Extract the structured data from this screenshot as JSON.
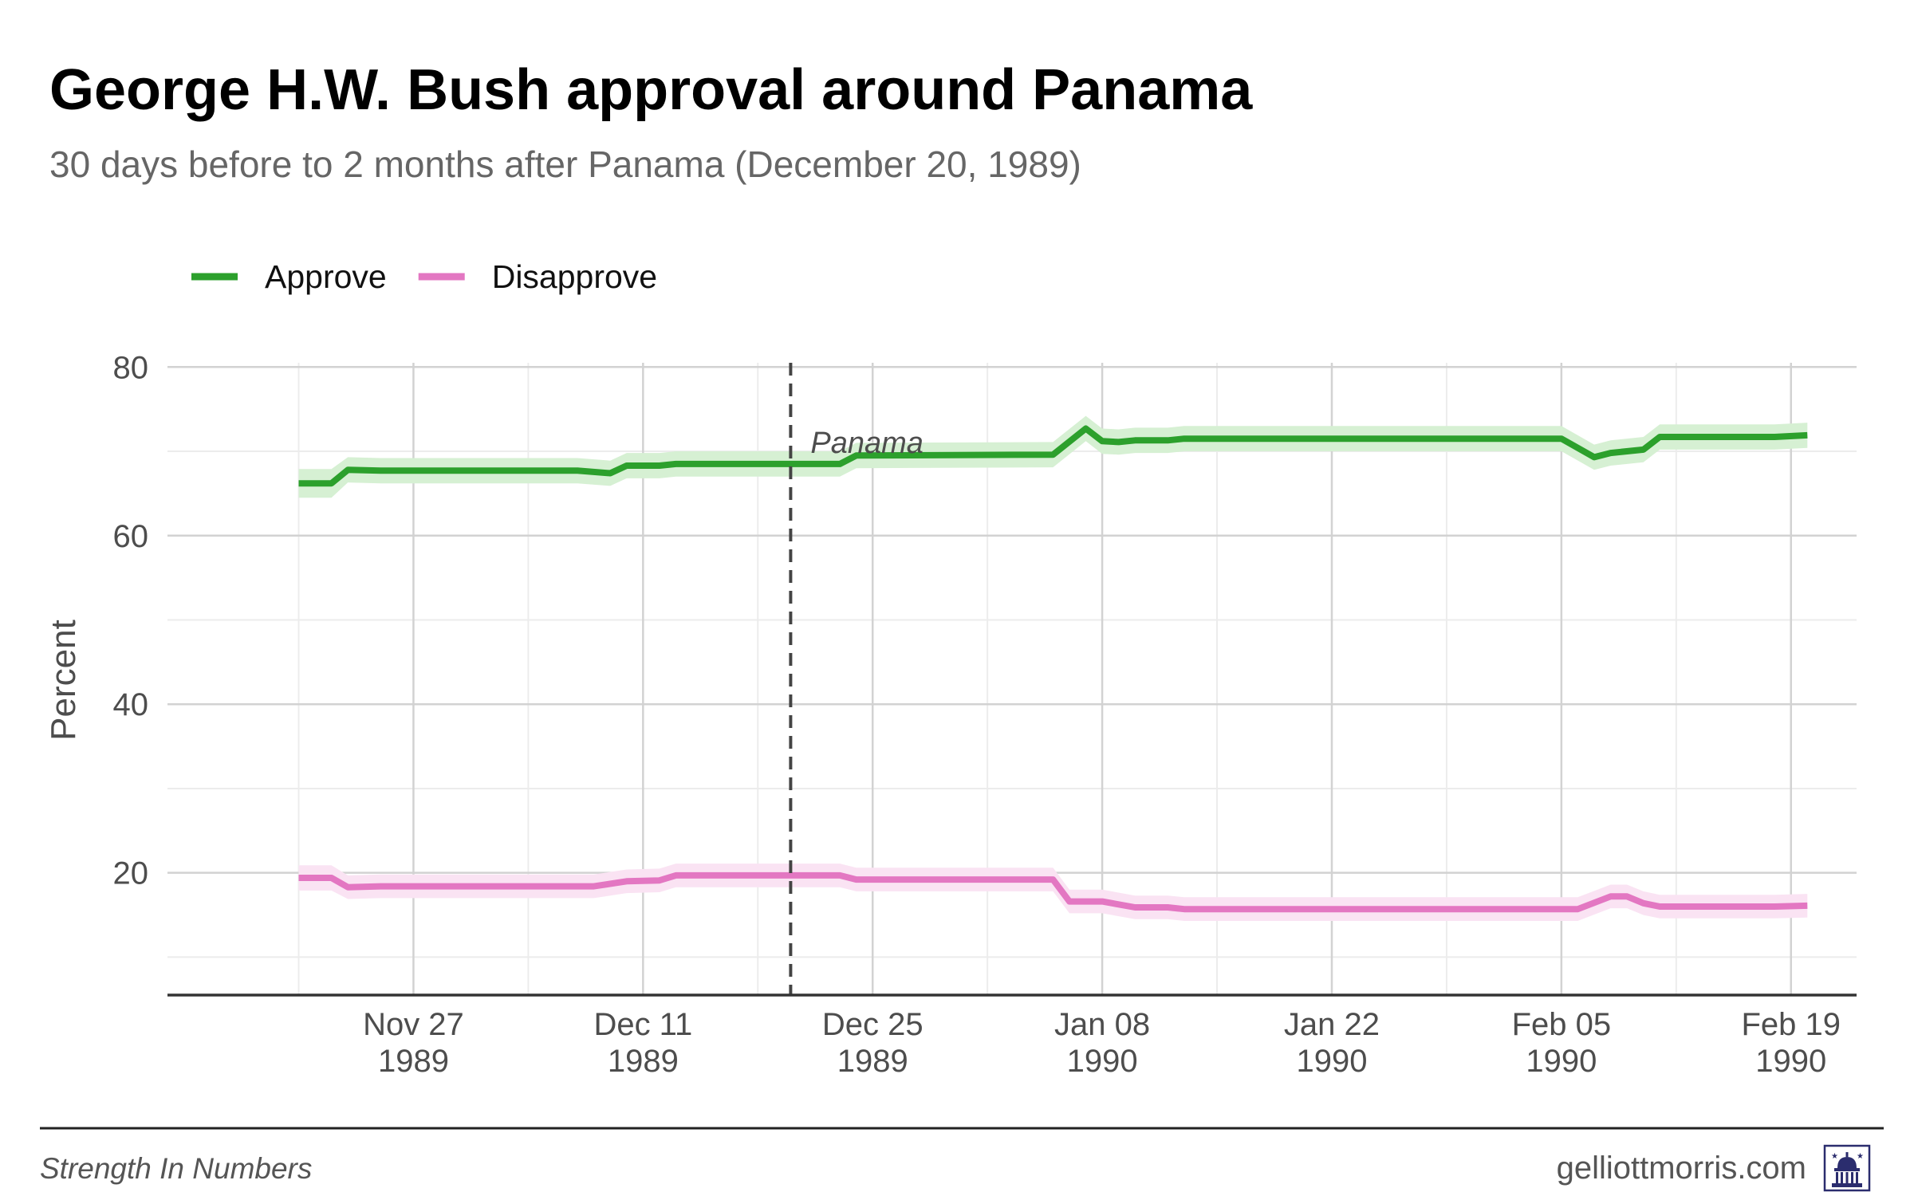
{
  "title": "George H.W. Bush approval around Panama",
  "subtitle": "30 days before to 2 months after Panama (December 20, 1989)",
  "footer": {
    "left": "Strength In Numbers",
    "right": "gelliottmorris.com",
    "logo_icon": "capitol-building-icon"
  },
  "colors": {
    "approve": "#2ca02c",
    "approve_band": "#d6f0d3",
    "disapprove": "#e377c2",
    "disapprove_band": "#fae3f3",
    "event_line": "#444444",
    "grid_major": "#d2d2d2",
    "grid_minor": "#ececec",
    "axis": "#333333"
  },
  "chart_data": {
    "type": "line",
    "title": "George H.W. Bush approval around Panama",
    "subtitle": "30 days before to 2 months after Panama (December 20, 1989)",
    "xlabel": "",
    "ylabel": "Percent",
    "x_type": "date",
    "xlim": [
      "1989-11-12",
      "1990-02-23"
    ],
    "ylim": [
      5.5,
      80.5
    ],
    "y_ticks": [
      20,
      40,
      60,
      80
    ],
    "x_ticks": [
      {
        "date": "1989-11-27",
        "line1": "Nov 27",
        "line2": "1989"
      },
      {
        "date": "1989-12-11",
        "line1": "Dec 11",
        "line2": "1989"
      },
      {
        "date": "1989-12-25",
        "line1": "Dec 25",
        "line2": "1989"
      },
      {
        "date": "1990-01-08",
        "line1": "Jan 08",
        "line2": "1990"
      },
      {
        "date": "1990-01-22",
        "line1": "Jan 22",
        "line2": "1990"
      },
      {
        "date": "1990-02-05",
        "line1": "Feb 05",
        "line2": "1990"
      },
      {
        "date": "1990-02-19",
        "line1": "Feb 19",
        "line2": "1990"
      }
    ],
    "grid": true,
    "legend_position": "top-left",
    "event": {
      "date": "1989-12-20",
      "label": "Panama"
    },
    "series": [
      {
        "name": "Approve",
        "color": "#2ca02c",
        "band_color": "#d6f0d3",
        "points": [
          {
            "x": "1989-11-20",
            "y": 66.2,
            "lo": 64.5,
            "hi": 67.9
          },
          {
            "x": "1989-11-22",
            "y": 66.2,
            "lo": 64.5,
            "hi": 67.9
          },
          {
            "x": "1989-11-23",
            "y": 67.8,
            "lo": 66.3,
            "hi": 69.3
          },
          {
            "x": "1989-11-25",
            "y": 67.7,
            "lo": 66.2,
            "hi": 69.2
          },
          {
            "x": "1989-12-07",
            "y": 67.7,
            "lo": 66.2,
            "hi": 69.2
          },
          {
            "x": "1989-12-09",
            "y": 67.4,
            "lo": 65.9,
            "hi": 68.9
          },
          {
            "x": "1989-12-10",
            "y": 68.3,
            "lo": 66.8,
            "hi": 69.8
          },
          {
            "x": "1989-12-12",
            "y": 68.3,
            "lo": 66.8,
            "hi": 69.8
          },
          {
            "x": "1989-12-13",
            "y": 68.5,
            "lo": 67.0,
            "hi": 70.0
          },
          {
            "x": "1989-12-23",
            "y": 68.5,
            "lo": 67.0,
            "hi": 70.0
          },
          {
            "x": "1989-12-24",
            "y": 69.5,
            "lo": 68.0,
            "hi": 71.0
          },
          {
            "x": "1990-01-05",
            "y": 69.6,
            "lo": 68.1,
            "hi": 71.1
          },
          {
            "x": "1990-01-07",
            "y": 72.7,
            "lo": 71.2,
            "hi": 74.2
          },
          {
            "x": "1990-01-08",
            "y": 71.2,
            "lo": 69.7,
            "hi": 72.7
          },
          {
            "x": "1990-01-09",
            "y": 71.1,
            "lo": 69.6,
            "hi": 72.6
          },
          {
            "x": "1990-01-10",
            "y": 71.3,
            "lo": 69.8,
            "hi": 72.8
          },
          {
            "x": "1990-01-12",
            "y": 71.3,
            "lo": 69.8,
            "hi": 72.8
          },
          {
            "x": "1990-01-13",
            "y": 71.5,
            "lo": 70.0,
            "hi": 73.0
          },
          {
            "x": "1990-02-05",
            "y": 71.5,
            "lo": 70.0,
            "hi": 73.0
          },
          {
            "x": "1990-02-07",
            "y": 69.3,
            "lo": 67.8,
            "hi": 70.8
          },
          {
            "x": "1990-02-08",
            "y": 69.8,
            "lo": 68.3,
            "hi": 71.3
          },
          {
            "x": "1990-02-10",
            "y": 70.2,
            "lo": 68.7,
            "hi": 71.7
          },
          {
            "x": "1990-02-11",
            "y": 71.7,
            "lo": 70.2,
            "hi": 73.2
          },
          {
            "x": "1990-02-18",
            "y": 71.7,
            "lo": 70.2,
            "hi": 73.2
          },
          {
            "x": "1990-02-20",
            "y": 71.9,
            "lo": 70.4,
            "hi": 73.4
          }
        ]
      },
      {
        "name": "Disapprove",
        "color": "#e377c2",
        "band_color": "#fae3f3",
        "points": [
          {
            "x": "1989-11-20",
            "y": 19.4,
            "lo": 17.9,
            "hi": 20.9
          },
          {
            "x": "1989-11-22",
            "y": 19.4,
            "lo": 17.9,
            "hi": 20.9
          },
          {
            "x": "1989-11-23",
            "y": 18.3,
            "lo": 16.9,
            "hi": 19.7
          },
          {
            "x": "1989-11-25",
            "y": 18.4,
            "lo": 17.0,
            "hi": 19.8
          },
          {
            "x": "1989-12-08",
            "y": 18.4,
            "lo": 17.0,
            "hi": 19.8
          },
          {
            "x": "1989-12-10",
            "y": 19.0,
            "lo": 17.6,
            "hi": 20.4
          },
          {
            "x": "1989-12-12",
            "y": 19.1,
            "lo": 17.7,
            "hi": 20.5
          },
          {
            "x": "1989-12-13",
            "y": 19.7,
            "lo": 18.3,
            "hi": 21.1
          },
          {
            "x": "1989-12-23",
            "y": 19.7,
            "lo": 18.3,
            "hi": 21.1
          },
          {
            "x": "1989-12-24",
            "y": 19.2,
            "lo": 17.8,
            "hi": 20.6
          },
          {
            "x": "1990-01-05",
            "y": 19.2,
            "lo": 17.8,
            "hi": 20.6
          },
          {
            "x": "1990-01-06",
            "y": 16.6,
            "lo": 15.2,
            "hi": 18.0
          },
          {
            "x": "1990-01-08",
            "y": 16.6,
            "lo": 15.2,
            "hi": 18.0
          },
          {
            "x": "1990-01-10",
            "y": 15.9,
            "lo": 14.5,
            "hi": 17.3
          },
          {
            "x": "1990-01-12",
            "y": 15.9,
            "lo": 14.5,
            "hi": 17.3
          },
          {
            "x": "1990-01-13",
            "y": 15.7,
            "lo": 14.3,
            "hi": 17.1
          },
          {
            "x": "1990-02-06",
            "y": 15.7,
            "lo": 14.3,
            "hi": 17.1
          },
          {
            "x": "1990-02-08",
            "y": 17.2,
            "lo": 15.8,
            "hi": 18.6
          },
          {
            "x": "1990-02-09",
            "y": 17.2,
            "lo": 15.8,
            "hi": 18.6
          },
          {
            "x": "1990-02-10",
            "y": 16.4,
            "lo": 15.0,
            "hi": 17.8
          },
          {
            "x": "1990-02-11",
            "y": 16.0,
            "lo": 14.6,
            "hi": 17.4
          },
          {
            "x": "1990-02-18",
            "y": 16.0,
            "lo": 14.6,
            "hi": 17.4
          },
          {
            "x": "1990-02-20",
            "y": 16.1,
            "lo": 14.7,
            "hi": 17.5
          }
        ]
      }
    ]
  }
}
